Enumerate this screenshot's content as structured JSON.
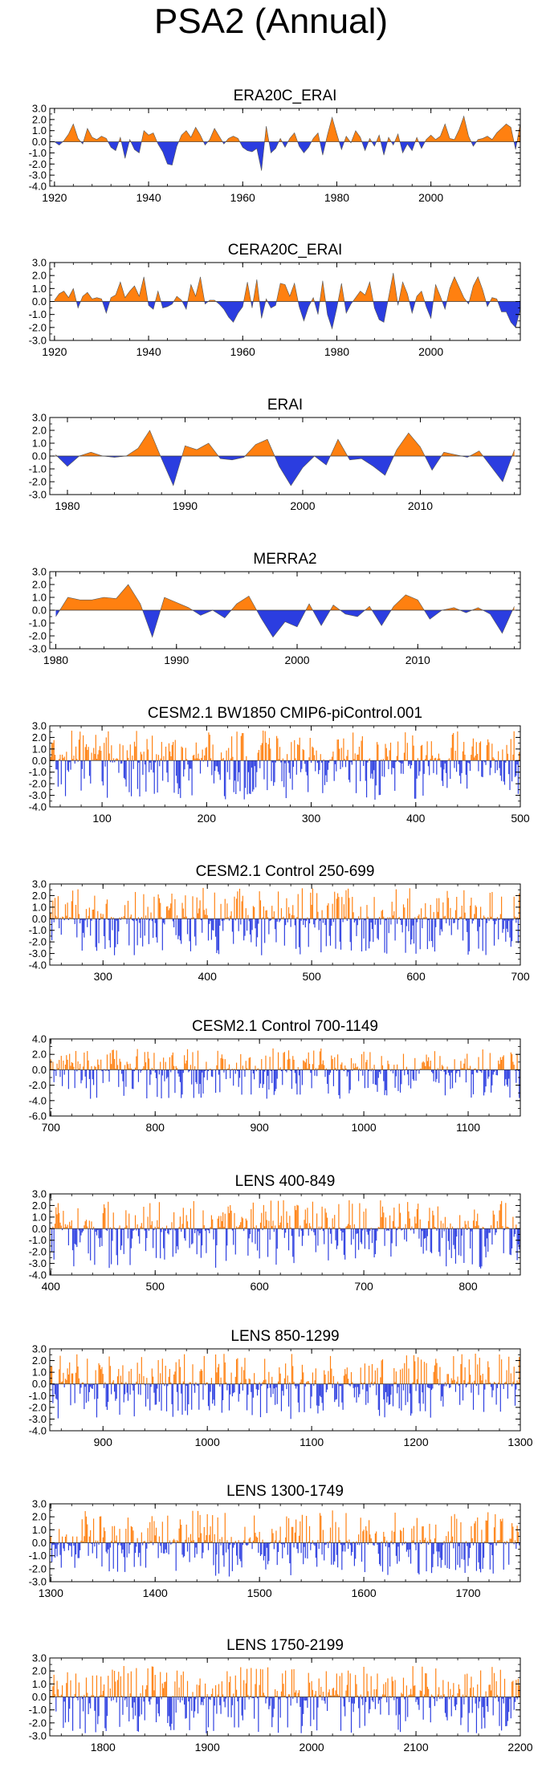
{
  "title": "PSA2 (Annual)",
  "colors": {
    "positive": "#ff8010",
    "negative": "#2b3de0",
    "axis": "#000000"
  },
  "chart_data": [
    {
      "type": "area",
      "title": "ERA20C_ERAI",
      "xlim": [
        1919,
        2019
      ],
      "ylim": [
        -4.0,
        3.0
      ],
      "yticks": [
        3.0,
        2.0,
        1.0,
        0.0,
        -1.0,
        -2.0,
        -3.0,
        -4.0
      ],
      "yticklabels": [
        "3.0",
        "2.0",
        "1.0",
        "0.0",
        "-1.0",
        "-2.0",
        "-3.0",
        "-4.0"
      ],
      "xticks": [
        1920,
        1940,
        1960,
        1980,
        2000
      ],
      "xticklabels": [
        "1920",
        "1940",
        "1960",
        "1980",
        "2000"
      ],
      "x_start": 1920,
      "values": [
        0.0,
        -0.3,
        0.1,
        0.7,
        1.6,
        0.3,
        -0.2,
        1.2,
        0.4,
        0.2,
        0.5,
        0.3,
        -0.5,
        -0.8,
        0.4,
        -1.5,
        0.2,
        -0.7,
        -1.0,
        1.0,
        0.6,
        0.8,
        -0.2,
        -0.9,
        -2.0,
        -2.1,
        -0.4,
        0.6,
        1.0,
        0.4,
        1.3,
        0.6,
        -0.3,
        0.2,
        1.2,
        0.5,
        -0.2,
        0.3,
        0.5,
        0.3,
        -0.5,
        -0.8,
        -0.9,
        -0.6,
        -2.6,
        1.4,
        -1.0,
        -0.6,
        0.3,
        -0.5,
        0.3,
        0.8,
        -0.4,
        -1.0,
        -0.5,
        0.3,
        0.8,
        -1.2,
        0.6,
        2.2,
        0.7,
        -0.7,
        0.5,
        -0.1,
        1.0,
        0.4,
        -0.8,
        0.3,
        -0.4,
        0.6,
        -1.2,
        0.4,
        -0.3,
        0.7,
        -1.0,
        -0.2,
        -0.8,
        0.4,
        -0.6,
        0.2,
        0.6,
        0.2,
        0.5,
        1.6,
        0.3,
        0.2,
        1.1,
        2.3,
        0.5,
        -0.4,
        0.2,
        0.3,
        0.5,
        0.2,
        0.8,
        1.2,
        1.6,
        1.3,
        -0.7,
        1.7,
        0.6
      ]
    },
    {
      "type": "area",
      "title": "CERA20C_ERAI",
      "xlim": [
        1919,
        2019
      ],
      "ylim": [
        -3.0,
        3.0
      ],
      "yticks": [
        3.0,
        2.0,
        1.0,
        0.0,
        -1.0,
        -2.0,
        -3.0
      ],
      "yticklabels": [
        "3.0",
        "2.0",
        "1.0",
        "0.0",
        "-1.0",
        "-2.0",
        "-3.0"
      ],
      "xticks": [
        1920,
        1940,
        1960,
        1980,
        2000
      ],
      "xticklabels": [
        "1920",
        "1940",
        "1960",
        "1980",
        "2000"
      ],
      "x_start": 1920,
      "values": [
        0.1,
        0.6,
        0.8,
        0.3,
        1.0,
        -0.5,
        0.4,
        0.7,
        0.2,
        0.3,
        0.2,
        -0.9,
        0.3,
        0.5,
        1.5,
        0.3,
        0.8,
        1.2,
        0.4,
        1.9,
        -0.3,
        -0.6,
        0.8,
        -0.5,
        -0.4,
        -0.2,
        0.4,
        0.1,
        -0.6,
        1.3,
        0.4,
        1.9,
        -0.2,
        0.1,
        0.1,
        -0.2,
        -0.6,
        -1.2,
        -1.6,
        -0.9,
        -0.4,
        1.5,
        -0.5,
        1.7,
        -1.3,
        0.2,
        -0.5,
        -0.3,
        1.4,
        1.3,
        0.4,
        1.4,
        -0.4,
        -1.5,
        -0.4,
        0.3,
        -1.0,
        1.6,
        -1.0,
        -2.1,
        -0.5,
        1.4,
        -0.9,
        -0.2,
        0.3,
        0.8,
        0.5,
        1.5,
        -0.5,
        -1.4,
        -1.6,
        0.3,
        2.2,
        -0.3,
        1.5,
        0.6,
        -0.9,
        0.4,
        0.8,
        -0.4,
        -1.3,
        1.3,
        0.4,
        -0.6,
        1.0,
        1.9,
        1.1,
        0.3,
        -0.2,
        1.2,
        1.9,
        0.9,
        -0.4,
        0.3,
        0.2,
        -0.8,
        -0.8,
        -1.6,
        -2.0,
        -0.6,
        -0.2
      ]
    },
    {
      "type": "area",
      "title": "ERAI",
      "xlim": [
        1978.5,
        2018.5
      ],
      "ylim": [
        -3.0,
        3.0
      ],
      "yticks": [
        3.0,
        2.0,
        1.0,
        0.0,
        -1.0,
        -2.0,
        -3.0
      ],
      "yticklabels": [
        "3.0",
        "2.0",
        "1.0",
        "0.0",
        "-1.0",
        "-2.0",
        "-3.0"
      ],
      "xticks": [
        1980,
        1990,
        2000,
        2010
      ],
      "xticklabels": [
        "1980",
        "1990",
        "2000",
        "2010"
      ],
      "x_start": 1979,
      "values": [
        0.1,
        -0.8,
        0.0,
        0.3,
        0.0,
        -0.1,
        0.0,
        0.6,
        2.0,
        -0.2,
        -2.3,
        0.8,
        0.5,
        1.0,
        -0.2,
        -0.3,
        -0.1,
        0.9,
        1.3,
        -0.8,
        -2.3,
        -0.9,
        0.0,
        -0.7,
        1.3,
        -0.3,
        -0.2,
        -0.8,
        -1.5,
        0.5,
        1.8,
        0.7,
        -1.1,
        0.3,
        0.1,
        -0.1,
        0.4,
        -0.8,
        -2.0,
        0.5
      ]
    },
    {
      "type": "area",
      "title": "MERRA2",
      "xlim": [
        1979.5,
        2018.5
      ],
      "ylim": [
        -3.0,
        3.0
      ],
      "yticks": [
        3.0,
        2.0,
        1.0,
        0.0,
        -1.0,
        -2.0,
        -3.0
      ],
      "yticklabels": [
        "3.0",
        "2.0",
        "1.0",
        "0.0",
        "-1.0",
        "-2.0",
        "-3.0"
      ],
      "xticks": [
        1980,
        1990,
        2000,
        2010
      ],
      "xticklabels": [
        "1980",
        "1990",
        "2000",
        "2010"
      ],
      "x_start": 1980,
      "values": [
        -0.5,
        1.0,
        0.8,
        0.8,
        1.0,
        0.9,
        2.0,
        0.5,
        -2.1,
        1.0,
        0.6,
        0.2,
        -0.4,
        0.0,
        -0.6,
        0.5,
        1.1,
        -0.6,
        -2.1,
        -0.9,
        -1.3,
        0.5,
        -1.2,
        0.4,
        -0.3,
        -0.5,
        0.3,
        -1.2,
        0.3,
        1.2,
        0.8,
        -0.7,
        0.0,
        0.2,
        -0.2,
        0.2,
        -0.3,
        -1.8,
        0.3
      ]
    },
    {
      "type": "bar",
      "title": "CESM2.1 BW1850 CMIP6-piControl.001",
      "xlim": [
        50,
        500
      ],
      "ylim": [
        -4.0,
        3.0
      ],
      "yticks": [
        3.0,
        2.0,
        1.0,
        0.0,
        -1.0,
        -2.0,
        -3.0,
        -4.0
      ],
      "yticklabels": [
        "3.0",
        "2.0",
        "1.0",
        "0.0",
        "-1.0",
        "-2.0",
        "-3.0",
        "-4.0"
      ],
      "xticks": [
        100,
        200,
        300,
        400,
        500
      ],
      "xticklabels": [
        "100",
        "200",
        "300",
        "400",
        "500"
      ],
      "x_start": 51,
      "n_years": 450,
      "seed": 11,
      "pos_max": 2.6,
      "neg_max": 3.4
    },
    {
      "type": "bar",
      "title": "CESM2.1 Control 250-699",
      "xlim": [
        249,
        700
      ],
      "ylim": [
        -4.0,
        3.0
      ],
      "yticks": [
        3.0,
        2.0,
        1.0,
        0.0,
        -1.0,
        -2.0,
        -3.0,
        -4.0
      ],
      "yticklabels": [
        "3.0",
        "2.0",
        "1.0",
        "0.0",
        "-1.0",
        "-2.0",
        "-3.0",
        "-4.0"
      ],
      "xticks": [
        300,
        400,
        500,
        600,
        700
      ],
      "xticklabels": [
        "300",
        "400",
        "500",
        "600",
        "700"
      ],
      "x_start": 250,
      "n_years": 450,
      "seed": 23,
      "pos_max": 2.7,
      "neg_max": 3.2
    },
    {
      "type": "bar",
      "title": "CESM2.1 Control 700-1149",
      "xlim": [
        699,
        1150
      ],
      "ylim": [
        -6.0,
        4.0
      ],
      "yticks": [
        4.0,
        2.0,
        0.0,
        -2.0,
        -4.0,
        -6.0
      ],
      "yticklabels": [
        "4.0",
        "2.0",
        "0.0",
        "-2.0",
        "-4.0",
        "-6.0"
      ],
      "xticks": [
        700,
        800,
        900,
        1000,
        1100
      ],
      "xticklabels": [
        "700",
        "800",
        "900",
        "1000",
        "1100"
      ],
      "x_start": 700,
      "n_years": 450,
      "seed": 37,
      "pos_max": 2.8,
      "neg_max": 3.8
    },
    {
      "type": "bar",
      "title": "LENS 400-849",
      "xlim": [
        399,
        850
      ],
      "ylim": [
        -4.0,
        3.0
      ],
      "yticks": [
        3.0,
        2.0,
        1.0,
        0.0,
        -1.0,
        -2.0,
        -3.0,
        -4.0
      ],
      "yticklabels": [
        "3.0",
        "2.0",
        "1.0",
        "0.0",
        "-1.0",
        "-2.0",
        "-3.0",
        "-4.0"
      ],
      "xticks": [
        400,
        500,
        600,
        700,
        800
      ],
      "xticklabels": [
        "400",
        "500",
        "600",
        "700",
        "800"
      ],
      "x_start": 400,
      "n_years": 450,
      "seed": 53,
      "pos_max": 2.5,
      "neg_max": 3.5
    },
    {
      "type": "bar",
      "title": "LENS 850-1299",
      "xlim": [
        849,
        1300
      ],
      "ylim": [
        -4.0,
        3.0
      ],
      "yticks": [
        3.0,
        2.0,
        1.0,
        0.0,
        -1.0,
        -2.0,
        -3.0,
        -4.0
      ],
      "yticklabels": [
        "3.0",
        "2.0",
        "1.0",
        "0.0",
        "-1.0",
        "-2.0",
        "-3.0",
        "-4.0"
      ],
      "xticks": [
        900,
        1000,
        1100,
        1200,
        1300
      ],
      "xticklabels": [
        "900",
        "1000",
        "1100",
        "1200",
        "1300"
      ],
      "x_start": 850,
      "n_years": 450,
      "seed": 71,
      "pos_max": 2.6,
      "neg_max": 3.0
    },
    {
      "type": "bar",
      "title": "LENS 1300-1749",
      "xlim": [
        1299,
        1750
      ],
      "ylim": [
        -3.0,
        3.0
      ],
      "yticks": [
        3.0,
        2.0,
        1.0,
        0.0,
        -1.0,
        -2.0,
        -3.0
      ],
      "yticklabels": [
        "3.0",
        "2.0",
        "1.0",
        "0.0",
        "-1.0",
        "-2.0",
        "-3.0"
      ],
      "xticks": [
        1300,
        1400,
        1500,
        1600,
        1700
      ],
      "xticklabels": [
        "1300",
        "1400",
        "1500",
        "1600",
        "1700"
      ],
      "x_start": 1300,
      "n_years": 450,
      "seed": 89,
      "pos_max": 2.5,
      "neg_max": 2.6
    },
    {
      "type": "bar",
      "title": "LENS 1750-2199",
      "xlim": [
        1749,
        2200
      ],
      "ylim": [
        -3.0,
        3.0
      ],
      "yticks": [
        3.0,
        2.0,
        1.0,
        0.0,
        -1.0,
        -2.0,
        -3.0
      ],
      "yticklabels": [
        "3.0",
        "2.0",
        "1.0",
        "0.0",
        "-1.0",
        "-2.0",
        "-3.0"
      ],
      "xticks": [
        1800,
        1900,
        2000,
        2100,
        2200
      ],
      "xticklabels": [
        "1800",
        "1900",
        "2000",
        "2100",
        "2200"
      ],
      "x_start": 1750,
      "n_years": 450,
      "seed": 97,
      "pos_max": 2.4,
      "neg_max": 2.8
    }
  ]
}
